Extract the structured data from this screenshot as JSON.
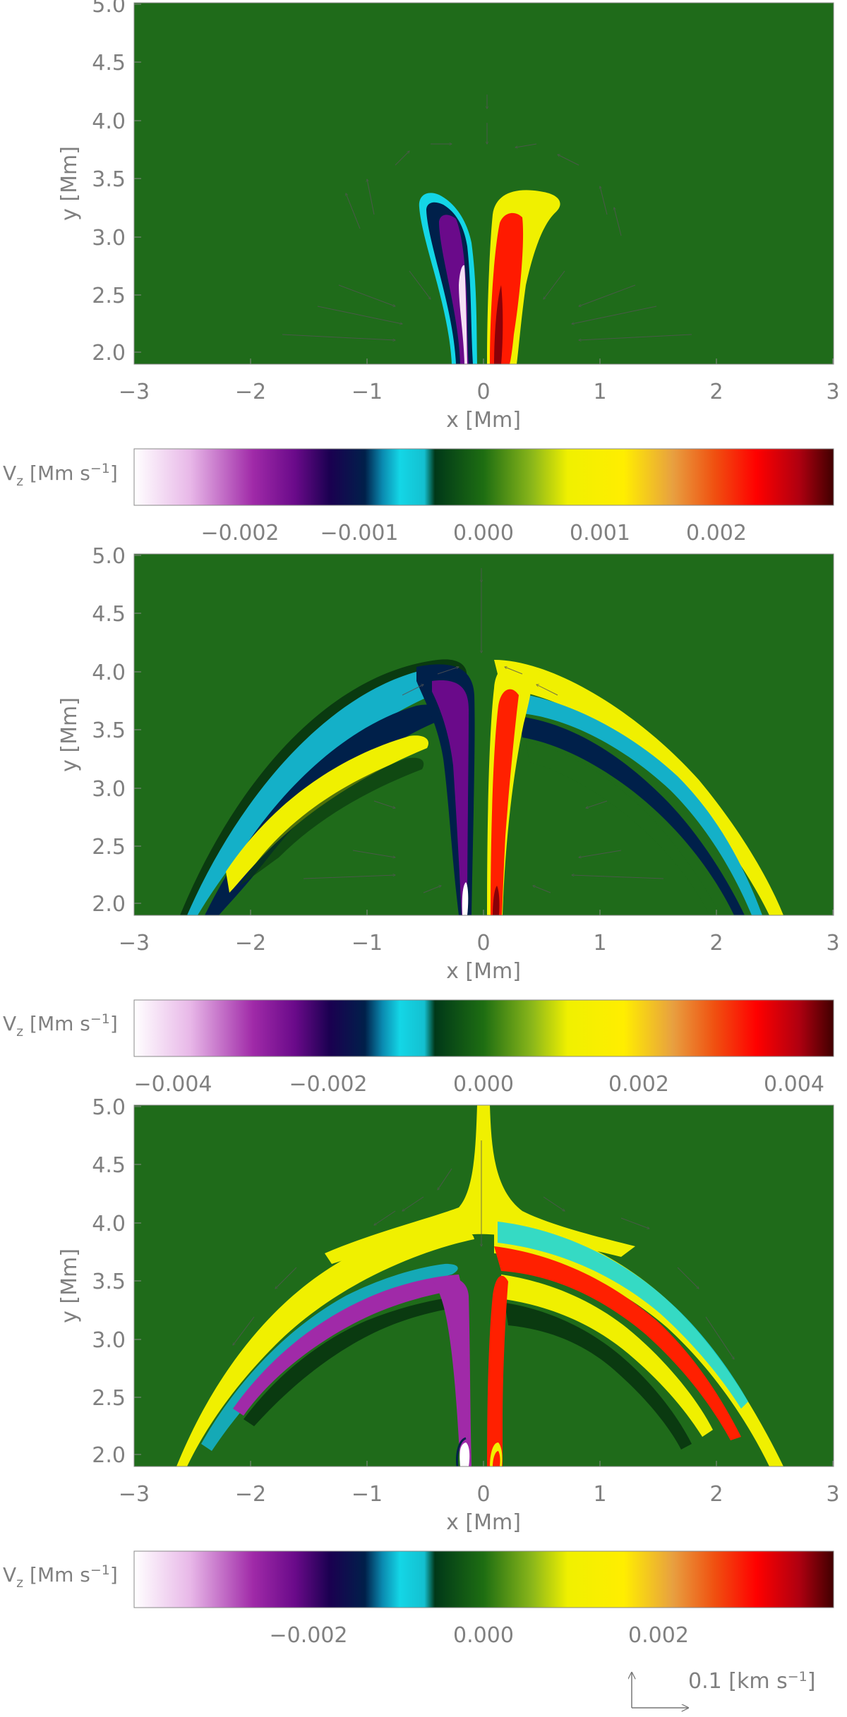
{
  "figure": {
    "vector_key_label": "0.1 [km s",
    "vector_key_sup": "−1",
    "vector_key_close": "]"
  },
  "chart_data": [
    {
      "type": "heatmap",
      "panel": "top",
      "xlabel": "x [Mm]",
      "ylabel": "y [Mm]",
      "xlim": [
        -3,
        3
      ],
      "ylim": [
        1.9,
        5.0
      ],
      "xticks": [
        "−3",
        "−2",
        "−1",
        "0",
        "1",
        "2",
        "3"
      ],
      "yticks": [
        "2.0",
        "2.5",
        "3.0",
        "3.5",
        "4.0",
        "4.5",
        "5.0"
      ],
      "overlay": "velocity vectors (arrows)",
      "colorbar": {
        "label": "V",
        "label_sub": "z",
        "label_units": " [Mm s",
        "label_sup": "−1",
        "label_close": "]",
        "ticks": [
          {
            "value": -0.002,
            "label": "−0.002"
          },
          {
            "value": -0.001,
            "label": "−0.001"
          },
          {
            "value": 0.0,
            "label": "0.000"
          },
          {
            "value": 0.001,
            "label": "0.001"
          },
          {
            "value": 0.002,
            "label": "0.002"
          }
        ],
        "range": [
          -0.003,
          0.003
        ]
      }
    },
    {
      "type": "heatmap",
      "panel": "middle",
      "xlabel": "x [Mm]",
      "ylabel": "y [Mm]",
      "xlim": [
        -3,
        3
      ],
      "ylim": [
        1.9,
        5.0
      ],
      "xticks": [
        "−3",
        "−2",
        "−1",
        "0",
        "1",
        "2",
        "3"
      ],
      "yticks": [
        "2.0",
        "2.5",
        "3.0",
        "3.5",
        "4.0",
        "4.5",
        "5.0"
      ],
      "overlay": "velocity vectors (arrows)",
      "colorbar": {
        "label": "V",
        "label_sub": "z",
        "label_units": " [Mm s",
        "label_sup": "−1",
        "label_close": "]",
        "ticks": [
          {
            "value": -0.004,
            "label": "−0.004"
          },
          {
            "value": -0.002,
            "label": "−0.002"
          },
          {
            "value": 0.0,
            "label": "0.000"
          },
          {
            "value": 0.002,
            "label": "0.002"
          },
          {
            "value": 0.004,
            "label": "0.004"
          }
        ],
        "range": [
          -0.0045,
          0.0045
        ]
      }
    },
    {
      "type": "heatmap",
      "panel": "bottom",
      "xlabel": "x [Mm]",
      "ylabel": "y [Mm]",
      "xlim": [
        -3,
        3
      ],
      "ylim": [
        1.9,
        5.0
      ],
      "xticks": [
        "−3",
        "−2",
        "−1",
        "0",
        "1",
        "2",
        "3"
      ],
      "yticks": [
        "2.0",
        "2.5",
        "3.0",
        "3.5",
        "4.0",
        "4.5",
        "5.0"
      ],
      "overlay": "velocity vectors (arrows)",
      "colorbar": {
        "label": "V",
        "label_sub": "z",
        "label_units": " [Mm s",
        "label_sup": "−1",
        "label_close": "]",
        "ticks": [
          {
            "value": -0.002,
            "label": "−0.002"
          },
          {
            "value": 0.0,
            "label": "0.000"
          },
          {
            "value": 0.002,
            "label": "0.002"
          }
        ],
        "range": [
          -0.004,
          0.004
        ]
      }
    }
  ]
}
